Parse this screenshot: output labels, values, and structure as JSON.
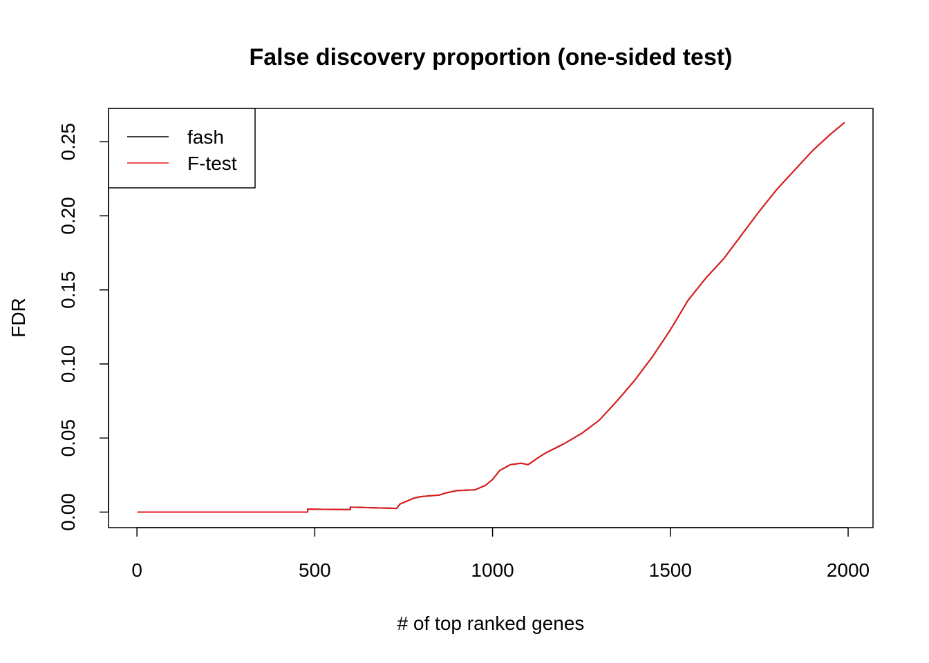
{
  "chart_data": {
    "type": "line",
    "title": "False discovery proportion (one-sided test)",
    "xlabel": "# of top ranked genes",
    "ylabel": "FDR",
    "xlim": [
      -80,
      2070
    ],
    "ylim": [
      -0.0105,
      0.2725
    ],
    "x_ticks": [
      0,
      500,
      1000,
      1500,
      2000
    ],
    "x_tick_labels": [
      "0",
      "500",
      "1000",
      "1500",
      "2000"
    ],
    "y_ticks": [
      0.0,
      0.05,
      0.1,
      0.15,
      0.2,
      0.25
    ],
    "y_tick_labels": [
      "0.00",
      "0.05",
      "0.10",
      "0.15",
      "0.20",
      "0.25"
    ],
    "grid": false,
    "legend_position": "top-left",
    "series": [
      {
        "name": "fash",
        "color": "#000000",
        "x": [
          1,
          480,
          480,
          600,
          600,
          730,
          740,
          760,
          780,
          800,
          850,
          870,
          900,
          950,
          980,
          1000,
          1020,
          1050,
          1080,
          1100,
          1130,
          1150,
          1200,
          1250,
          1300,
          1350,
          1400,
          1450,
          1500,
          1550,
          1600,
          1650,
          1700,
          1750,
          1800,
          1850,
          1900,
          1950,
          1990
        ],
        "values": [
          0.0,
          0.0,
          0.002,
          0.0017,
          0.0033,
          0.0025,
          0.0055,
          0.0075,
          0.0095,
          0.0105,
          0.0115,
          0.013,
          0.0145,
          0.015,
          0.018,
          0.022,
          0.028,
          0.032,
          0.033,
          0.032,
          0.037,
          0.04,
          0.046,
          0.053,
          0.062,
          0.075,
          0.089,
          0.105,
          0.123,
          0.143,
          0.158,
          0.171,
          0.187,
          0.203,
          0.218,
          0.231,
          0.244,
          0.255,
          0.263
        ]
      },
      {
        "name": "F-test",
        "color": "#e41a1c",
        "x": [
          1,
          480,
          480,
          600,
          600,
          730,
          740,
          760,
          780,
          800,
          850,
          870,
          900,
          950,
          980,
          1000,
          1020,
          1050,
          1080,
          1100,
          1130,
          1150,
          1200,
          1250,
          1300,
          1350,
          1400,
          1450,
          1500,
          1550,
          1600,
          1650,
          1700,
          1750,
          1800,
          1850,
          1900,
          1950,
          1990
        ],
        "values": [
          0.0,
          0.0,
          0.002,
          0.0017,
          0.0033,
          0.0025,
          0.0055,
          0.0075,
          0.0095,
          0.0105,
          0.0115,
          0.013,
          0.0145,
          0.015,
          0.018,
          0.022,
          0.028,
          0.032,
          0.033,
          0.032,
          0.037,
          0.04,
          0.046,
          0.053,
          0.062,
          0.075,
          0.089,
          0.105,
          0.123,
          0.143,
          0.158,
          0.171,
          0.187,
          0.203,
          0.218,
          0.231,
          0.244,
          0.255,
          0.263
        ]
      }
    ]
  }
}
